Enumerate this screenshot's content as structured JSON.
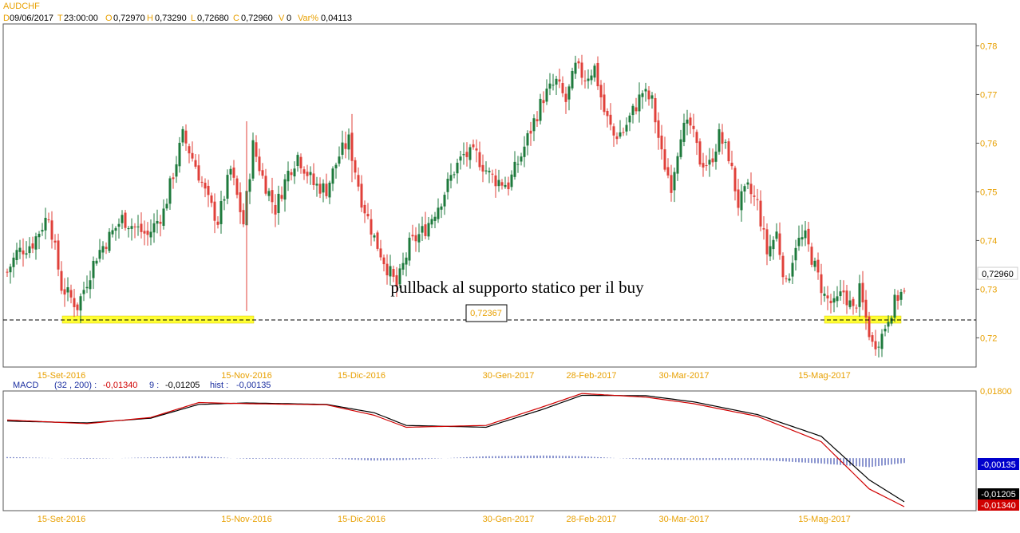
{
  "header": {
    "symbol": "AUDCHF",
    "d_label": "D",
    "date": "09/06/2017",
    "t_label": "T",
    "time": "23:00:00",
    "o_label": "O",
    "open": "0,72970",
    "h_label": "H",
    "high": "0,73290",
    "l_label": "L",
    "low": "0,72680",
    "c_label": "C",
    "close": "0,72960",
    "v_label": "V",
    "volume": "0",
    "var_label": "Var%",
    "var_value": "0,04113"
  },
  "annotation": {
    "text": "pullback al supporto statico per il buy",
    "support_value": "0,72367",
    "last_price": "0,72960"
  },
  "macd_header": {
    "label": "MACD",
    "params": "(32 , 200) :",
    "macd_value": "-0,01340",
    "signal_label": "9 :",
    "signal_value": "-0,01205",
    "hist_label": "hist :",
    "hist_value": "-0,00135"
  },
  "macd_right": {
    "top": "0,01800",
    "hist_badge": "-0,00135",
    "signal_badge": "-0,01205",
    "macd_badge": "-0,01340"
  },
  "colors": {
    "up": "#1e7a3c",
    "down": "#e0403a",
    "support": "#ffff33",
    "macd": "#d00000",
    "signal": "#000000",
    "hist": "#1a2ea0",
    "axis_text": "#e8a000",
    "date_text": "#e8a000"
  },
  "chart_data": [
    {
      "type": "candlestick",
      "title": "AUDCHF",
      "y_ticks": [
        0.72,
        0.73,
        0.74,
        0.75,
        0.76,
        0.77,
        0.78
      ],
      "y_tick_labels": [
        "0,72",
        "0,73",
        "0,74",
        "0,75",
        "0,76",
        "0,77",
        "0,78"
      ],
      "ylim": [
        0.714,
        0.7845
      ],
      "x_labels": [
        "15-Set-2016",
        "15-Nov-2016",
        "15-Dic-2016",
        "30-Gen-2017",
        "28-Feb-2017",
        "30-Mar-2017",
        "15-Mag-2017"
      ],
      "support_level": 0.72367,
      "last_close": 0.7296,
      "anchors": [
        [
          0,
          0.7335
        ],
        [
          3,
          0.7375
        ],
        [
          8,
          0.7395
        ],
        [
          13,
          0.7455
        ],
        [
          17,
          0.7305
        ],
        [
          22,
          0.7265
        ],
        [
          28,
          0.737
        ],
        [
          36,
          0.7445
        ],
        [
          44,
          0.741
        ],
        [
          49,
          0.746
        ],
        [
          55,
          0.7615
        ],
        [
          59,
          0.7555
        ],
        [
          63,
          0.748
        ],
        [
          66,
          0.744
        ],
        [
          70,
          0.7545
        ],
        [
          74,
          0.7435
        ],
        [
          77,
          0.7595
        ],
        [
          80,
          0.753
        ],
        [
          84,
          0.7465
        ],
        [
          88,
          0.754
        ],
        [
          91,
          0.7575
        ],
        [
          96,
          0.7515
        ],
        [
          100,
          0.7505
        ],
        [
          104,
          0.7575
        ],
        [
          107,
          0.7605
        ],
        [
          111,
          0.7485
        ],
        [
          115,
          0.7405
        ],
        [
          119,
          0.7345
        ],
        [
          122,
          0.7305
        ],
        [
          126,
          0.739
        ],
        [
          131,
          0.7425
        ],
        [
          136,
          0.7485
        ],
        [
          140,
          0.7545
        ],
        [
          143,
          0.7575
        ],
        [
          147,
          0.7575
        ],
        [
          151,
          0.7535
        ],
        [
          153,
          0.7525
        ],
        [
          157,
          0.7515
        ],
        [
          161,
          0.7575
        ],
        [
          165,
          0.7645
        ],
        [
          168,
          0.7695
        ],
        [
          172,
          0.7725
        ],
        [
          175,
          0.7685
        ],
        [
          178,
          0.7755
        ],
        [
          181,
          0.7735
        ],
        [
          184,
          0.7755
        ],
        [
          187,
          0.7665
        ],
        [
          190,
          0.7615
        ],
        [
          193,
          0.7625
        ],
        [
          196,
          0.7665
        ],
        [
          199,
          0.7705
        ],
        [
          202,
          0.7685
        ],
        [
          205,
          0.7575
        ],
        [
          208,
          0.7515
        ],
        [
          211,
          0.7625
        ],
        [
          214,
          0.7635
        ],
        [
          217,
          0.7565
        ],
        [
          220,
          0.7555
        ],
        [
          223,
          0.7615
        ],
        [
          226,
          0.7575
        ],
        [
          229,
          0.7475
        ],
        [
          232,
          0.7505
        ],
        [
          235,
          0.7475
        ],
        [
          238,
          0.7375
        ],
        [
          241,
          0.7415
        ],
        [
          244,
          0.7305
        ],
        [
          247,
          0.7395
        ],
        [
          250,
          0.7405
        ],
        [
          253,
          0.7345
        ],
        [
          256,
          0.7285
        ],
        [
          259,
          0.7265
        ],
        [
          262,
          0.7295
        ],
        [
          265,
          0.7255
        ],
        [
          267,
          0.7295
        ],
        [
          271,
          0.7185
        ],
        [
          274,
          0.7205
        ],
        [
          276,
          0.7245
        ],
        [
          279,
          0.7285
        ],
        [
          281,
          0.7296
        ]
      ]
    },
    {
      "type": "line",
      "title": "MACD (32 , 200)",
      "series": [
        {
          "name": "MACD",
          "anchors": [
            [
              0,
              0.0105
            ],
            [
              25,
              0.0095
            ],
            [
              45,
              0.0112
            ],
            [
              60,
              0.0153
            ],
            [
              75,
              0.015
            ],
            [
              100,
              0.0147
            ],
            [
              115,
              0.0118
            ],
            [
              125,
              0.0085
            ],
            [
              150,
              0.009
            ],
            [
              168,
              0.0142
            ],
            [
              180,
              0.0178
            ],
            [
              200,
              0.0168
            ],
            [
              215,
              0.015
            ],
            [
              235,
              0.0115
            ],
            [
              255,
              0.0045
            ],
            [
              270,
              -0.0085
            ],
            [
              281,
              -0.0134
            ]
          ]
        },
        {
          "name": "Signal 9",
          "anchors": [
            [
              0,
              0.0102
            ],
            [
              25,
              0.0097
            ],
            [
              45,
              0.011
            ],
            [
              60,
              0.0148
            ],
            [
              75,
              0.0152
            ],
            [
              100,
              0.0148
            ],
            [
              115,
              0.0125
            ],
            [
              125,
              0.009
            ],
            [
              150,
              0.0085
            ],
            [
              168,
              0.0135
            ],
            [
              180,
              0.0173
            ],
            [
              200,
              0.0172
            ],
            [
              215,
              0.0155
            ],
            [
              235,
              0.012
            ],
            [
              255,
              0.006
            ],
            [
              270,
              -0.006
            ],
            [
              281,
              -0.01205
            ]
          ]
        },
        {
          "name": "hist",
          "anchors": [
            [
              0,
              0.0003
            ],
            [
              25,
              -0.0002
            ],
            [
              45,
              0.0002
            ],
            [
              60,
              0.0005
            ],
            [
              75,
              -0.0002
            ],
            [
              100,
              -0.0001
            ],
            [
              115,
              -0.0007
            ],
            [
              125,
              -0.0005
            ],
            [
              150,
              0.0005
            ],
            [
              168,
              0.0007
            ],
            [
              180,
              0.0005
            ],
            [
              200,
              -0.0004
            ],
            [
              215,
              -0.0005
            ],
            [
              235,
              -0.0005
            ],
            [
              255,
              -0.0015
            ],
            [
              270,
              -0.0025
            ],
            [
              281,
              -0.00135
            ]
          ]
        }
      ],
      "ylim": [
        -0.0145,
        0.0185
      ],
      "y_tick_labels": [
        "0,01800"
      ]
    }
  ]
}
